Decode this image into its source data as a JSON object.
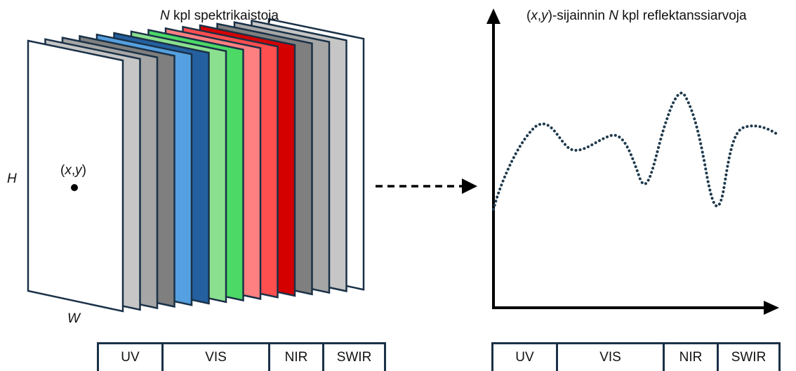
{
  "cube": {
    "title_var": "N",
    "title_rest": " kpl spektrikaistoja",
    "height_label": "H",
    "width_label": "W",
    "point_label": {
      "open": "(",
      "x": "x",
      "comma": ",",
      "y": "y",
      "close": ")"
    },
    "layer_colors": [
      "#ffffff",
      "#c6c6c6",
      "#a6a6a6",
      "#7f7f7f",
      "#55a0e0",
      "#2460a0",
      "#8be08f",
      "#4cd966",
      "#ff8080",
      "#ff4f4f",
      "#d40000",
      "#7f7f7f",
      "#a6a6a6",
      "#c6c6c6",
      "#ffffff"
    ],
    "bands": [
      {
        "label": "UV"
      },
      {
        "label": "VIS"
      },
      {
        "label": "NIR"
      },
      {
        "label": "SWIR"
      }
    ]
  },
  "graph": {
    "title_open": "(",
    "title_x": "x",
    "title_comma": ",",
    "title_y": "y",
    "title_mid": ")-sijainnin ",
    "title_var": "N",
    "title_rest": " kpl reflektanssiarvoja",
    "curve_color": "#1f3a4d",
    "bands": [
      {
        "label": "UV"
      },
      {
        "label": "VIS"
      },
      {
        "label": "NIR"
      },
      {
        "label": "SWIR"
      }
    ]
  },
  "colors": {
    "outline": "#1a3147",
    "axis": "#000000"
  }
}
